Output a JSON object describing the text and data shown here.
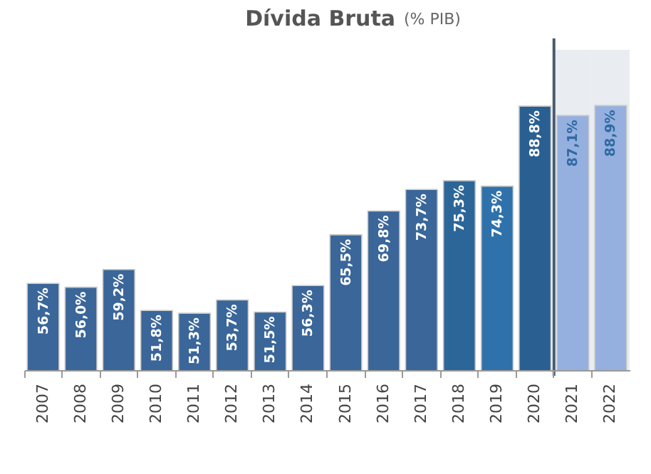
{
  "chart_data": {
    "type": "bar",
    "title": "Dívida Bruta",
    "subtitle": "(% PIB)",
    "categories": [
      "2007",
      "2008",
      "2009",
      "2010",
      "2011",
      "2012",
      "2013",
      "2014",
      "2015",
      "2016",
      "2017",
      "2018",
      "2019",
      "2020",
      "2021",
      "2022"
    ],
    "values": [
      56.7,
      56.0,
      59.2,
      51.8,
      51.3,
      53.7,
      51.5,
      56.3,
      65.5,
      69.8,
      73.7,
      75.3,
      74.3,
      88.8,
      87.1,
      88.9
    ],
    "value_labels": [
      "56,7%",
      "56,0%",
      "59,2%",
      "51,8%",
      "51,3%",
      "53,7%",
      "51,5%",
      "56,3%",
      "65,5%",
      "69,8%",
      "73,7%",
      "75,3%",
      "74,3%",
      "88,8%",
      "87,1%",
      "88,9%"
    ],
    "colors": [
      "#3a6699",
      "#3a6699",
      "#3a6699",
      "#3a6699",
      "#3a6699",
      "#3a6699",
      "#3a6699",
      "#3a6699",
      "#3a6699",
      "#3a6699",
      "#3a6699",
      "#2c6699",
      "#2f72ab",
      "#2a5f92",
      "#95b0de",
      "#95b0de"
    ],
    "ylim": [
      41,
      99
    ],
    "bands": [
      {
        "axis": "x",
        "from": "2021",
        "to": "2022",
        "color": "#e9edf1"
      }
    ],
    "grid": false
  }
}
